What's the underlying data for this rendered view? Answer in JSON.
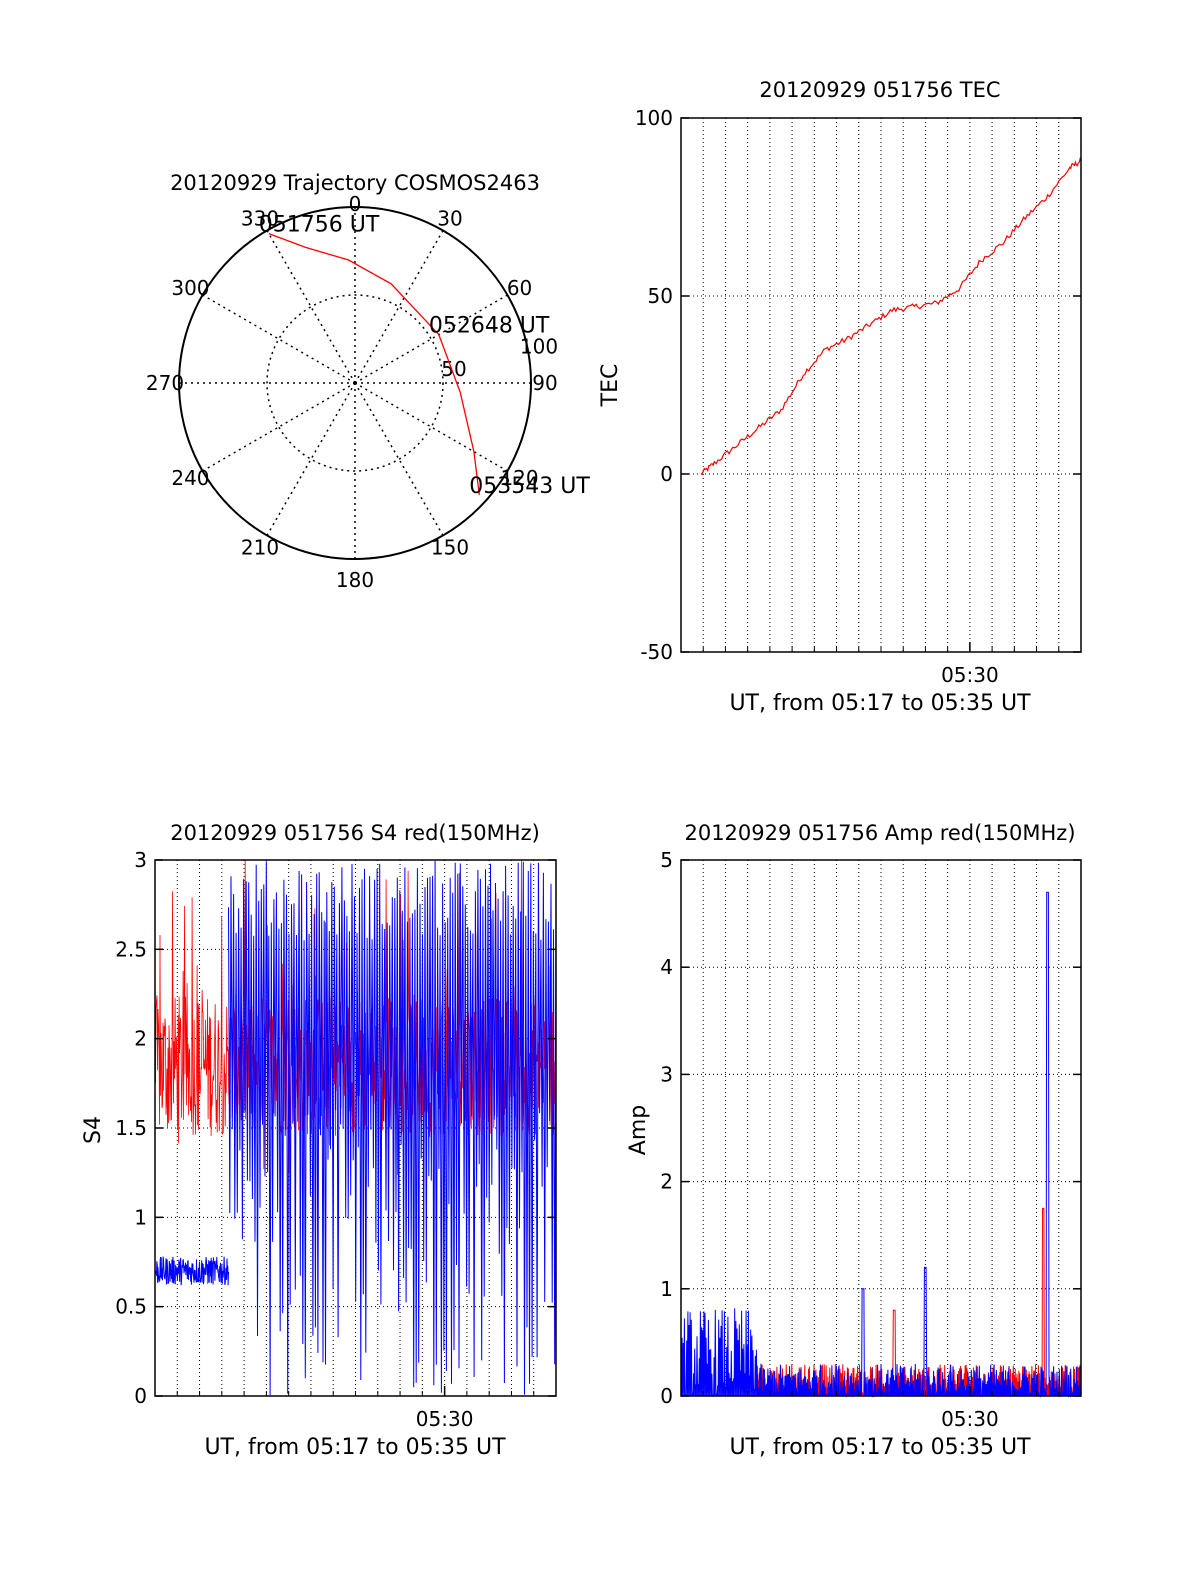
{
  "colors": {
    "red": "#ff0000",
    "blue": "#0000ff",
    "axis": "#000000",
    "grid": "#000000"
  },
  "chart_data": [
    {
      "type": "polar",
      "title": "20120929 Trajectory COSMOS2463",
      "angle_labels": [
        "0",
        "30",
        "60",
        "90",
        "120",
        "150",
        "180",
        "210",
        "240",
        "270",
        "300",
        "330"
      ],
      "radius_labels": [
        "50",
        "100"
      ],
      "radius_max": 100,
      "grid": true,
      "series": [
        {
          "color": "red",
          "points": [
            {
              "az": 330,
              "r": 98,
              "label": "051756 UT"
            },
            {
              "az": 340,
              "r": 82
            },
            {
              "az": 357,
              "r": 70
            },
            {
              "az": 20,
              "r": 60
            },
            {
              "az": 60,
              "r": 55,
              "label": "052648 UT"
            },
            {
              "az": 95,
              "r": 60
            },
            {
              "az": 120,
              "r": 78
            },
            {
              "az": 132,
              "r": 95,
              "label": "053543 UT"
            }
          ]
        }
      ],
      "annotations": [
        "051756 UT",
        "052648 UT",
        "053543 UT"
      ]
    },
    {
      "type": "line",
      "title": "20120929 051756 TEC",
      "xlabel": "UT, from 05:17 to 05:35 UT",
      "ylabel": "TEC",
      "xlim": [
        0,
        18
      ],
      "ylim": [
        -50,
        100
      ],
      "yticks": [
        "-50",
        "0",
        "50",
        "100"
      ],
      "xtick_labels": [
        {
          "x": 13,
          "label": "05:30"
        }
      ],
      "grid": true,
      "series": [
        {
          "color": "red",
          "x": [
            0.9,
            1.5,
            2.5,
            3.5,
            4.5,
            5.5,
            6.5,
            7.5,
            8.5,
            9.5,
            10.5,
            11.5,
            12.5,
            13.5,
            14.5,
            15.5,
            16.5,
            17.5,
            18.0
          ],
          "y": [
            0,
            3,
            8,
            13,
            18,
            28,
            35,
            38,
            42,
            46,
            47,
            48,
            52,
            60,
            65,
            72,
            78,
            86,
            88
          ]
        }
      ]
    },
    {
      "type": "line",
      "title": "20120929 051756 S4 red(150MHz)",
      "xlabel": "UT, from 05:17 to 05:35 UT",
      "ylabel": "S4",
      "xlim": [
        0,
        18
      ],
      "ylim": [
        0,
        3
      ],
      "yticks": [
        "0",
        "0.5",
        "1",
        "1.5",
        "2",
        "2.5",
        "3"
      ],
      "xtick_labels": [
        {
          "x": 13,
          "label": "05:30"
        }
      ],
      "grid": true,
      "series": [
        {
          "color": "red",
          "x_range": [
            0,
            18
          ],
          "baseline": 1.85,
          "spread": 0.4
        },
        {
          "color": "blue",
          "x_range": [
            0,
            3.3
          ],
          "baseline": 0.7,
          "spread": 0.08,
          "noisy_x_range": [
            3.3,
            18
          ],
          "noisy_range_values": [
            0,
            3
          ]
        }
      ]
    },
    {
      "type": "line",
      "title": "20120929 051756 Amp red(150MHz)",
      "xlabel": "UT, from 05:17 to 05:35 UT",
      "ylabel": "Amp",
      "xlim": [
        0,
        18
      ],
      "ylim": [
        0,
        5
      ],
      "yticks": [
        "0",
        "1",
        "2",
        "3",
        "4",
        "5"
      ],
      "xtick_labels": [
        {
          "x": 13,
          "label": "05:30"
        }
      ],
      "grid": true,
      "series": [
        {
          "color": "blue",
          "baseline": 0.2,
          "peaks": [
            {
              "x": 8.2,
              "y": 1.0
            },
            {
              "x": 11.0,
              "y": 1.2
            },
            {
              "x": 16.5,
              "y": 4.7
            }
          ]
        },
        {
          "color": "red",
          "baseline": 0.2,
          "peaks": [
            {
              "x": 9.6,
              "y": 0.8
            },
            {
              "x": 16.3,
              "y": 1.75
            }
          ]
        }
      ]
    }
  ]
}
